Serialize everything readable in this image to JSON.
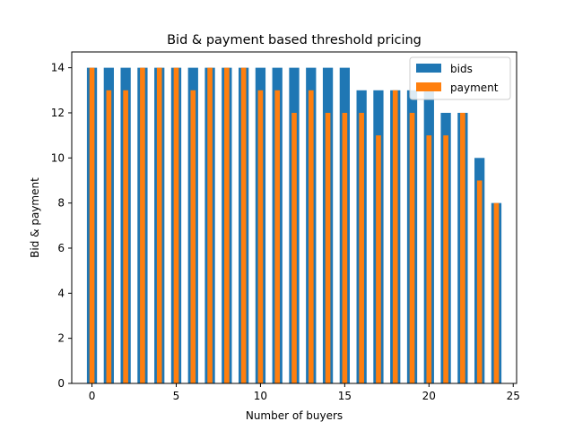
{
  "chart_data": {
    "type": "bar",
    "title": "Bid & payment based threshold pricing",
    "xlabel": "Number of buyers",
    "ylabel": "Bid & payment",
    "x": [
      0,
      1,
      2,
      3,
      4,
      5,
      6,
      7,
      8,
      9,
      10,
      11,
      12,
      13,
      14,
      15,
      16,
      17,
      18,
      19,
      20,
      21,
      22,
      23,
      24
    ],
    "xlim": [
      -1.2,
      25.2
    ],
    "ylim": [
      0,
      14.7
    ],
    "xticks": [
      0,
      5,
      10,
      15,
      20,
      25
    ],
    "yticks": [
      0,
      2,
      4,
      6,
      8,
      10,
      12,
      14
    ],
    "series": [
      {
        "name": "bids",
        "color": "#1f77b4",
        "values": [
          14,
          14,
          14,
          14,
          14,
          14,
          14,
          14,
          14,
          14,
          14,
          14,
          14,
          14,
          14,
          14,
          13,
          13,
          13,
          13,
          13,
          12,
          12,
          10,
          8
        ]
      },
      {
        "name": "payment",
        "color": "#ff7f0e",
        "values": [
          14,
          13,
          13,
          14,
          14,
          14,
          13,
          14,
          14,
          14,
          13,
          13,
          12,
          13,
          12,
          12,
          12,
          11,
          13,
          12,
          11,
          11,
          12,
          9,
          8
        ]
      }
    ],
    "legend": "upper-right",
    "grid": false
  }
}
